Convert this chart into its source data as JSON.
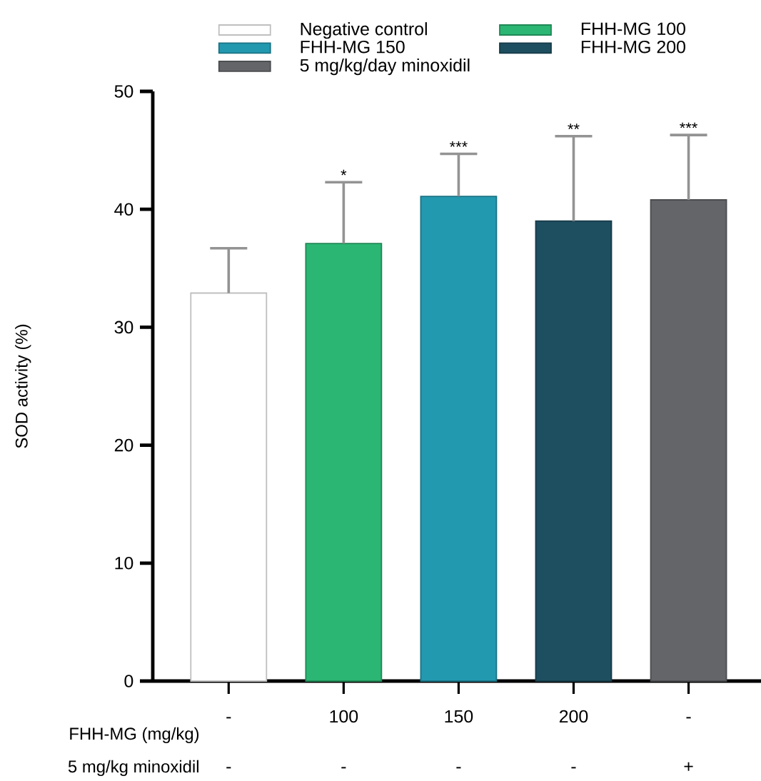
{
  "chart_data": {
    "type": "bar",
    "ylabel": "SOD activity (%)",
    "xlabel": "FHH-MG (mg/kg)",
    "categories": [
      "-",
      "100",
      "150",
      "200",
      "-"
    ],
    "series": [
      {
        "name": "Negative control",
        "color": "#ffffff",
        "values": [
          32.9,
          null,
          null,
          null,
          null
        ],
        "errors": [
          [
            32.9,
            36.7
          ],
          null,
          null,
          null,
          null
        ]
      },
      {
        "name": "FHH-MG 100",
        "color": "#2bb673",
        "values": [
          null,
          37.1,
          null,
          null,
          null
        ],
        "errors": [
          null,
          [
            37.1,
            42.3
          ],
          null,
          null,
          null
        ]
      },
      {
        "name": "FHH-MG 150",
        "color": "#2399b0",
        "values": [
          null,
          null,
          41.1,
          null,
          null
        ],
        "errors": [
          null,
          null,
          [
            41.1,
            44.7
          ],
          null,
          null
        ]
      },
      {
        "name": "FHH-MG 200",
        "color": "#1e4f60",
        "values": [
          null,
          null,
          null,
          39.0,
          null
        ],
        "errors": [
          null,
          null,
          null,
          [
            39.0,
            46.2
          ],
          null
        ]
      },
      {
        "name": "5 mg/kg/day minoxidil",
        "color": "#636569",
        "values": [
          null,
          null,
          null,
          null,
          40.8
        ],
        "errors": [
          null,
          null,
          null,
          null,
          [
            40.8,
            46.3
          ]
        ]
      }
    ],
    "ylim": [
      0,
      50
    ],
    "yticks": [
      0,
      10,
      20,
      30,
      40,
      50
    ],
    "grid": false,
    "legend": "top",
    "annotations": [
      "5 mg/kg minoxidil",
      "-",
      "-",
      "-",
      "-",
      "+",
      {
        "text": "*",
        "x": "100",
        "y": 42.3
      },
      {
        "text": "***",
        "x": "150",
        "y": 44.7
      },
      {
        "text": "**",
        "x": "200",
        "y": 46.2
      },
      {
        "text": "***",
        "y": 46.3
      }
    ]
  }
}
